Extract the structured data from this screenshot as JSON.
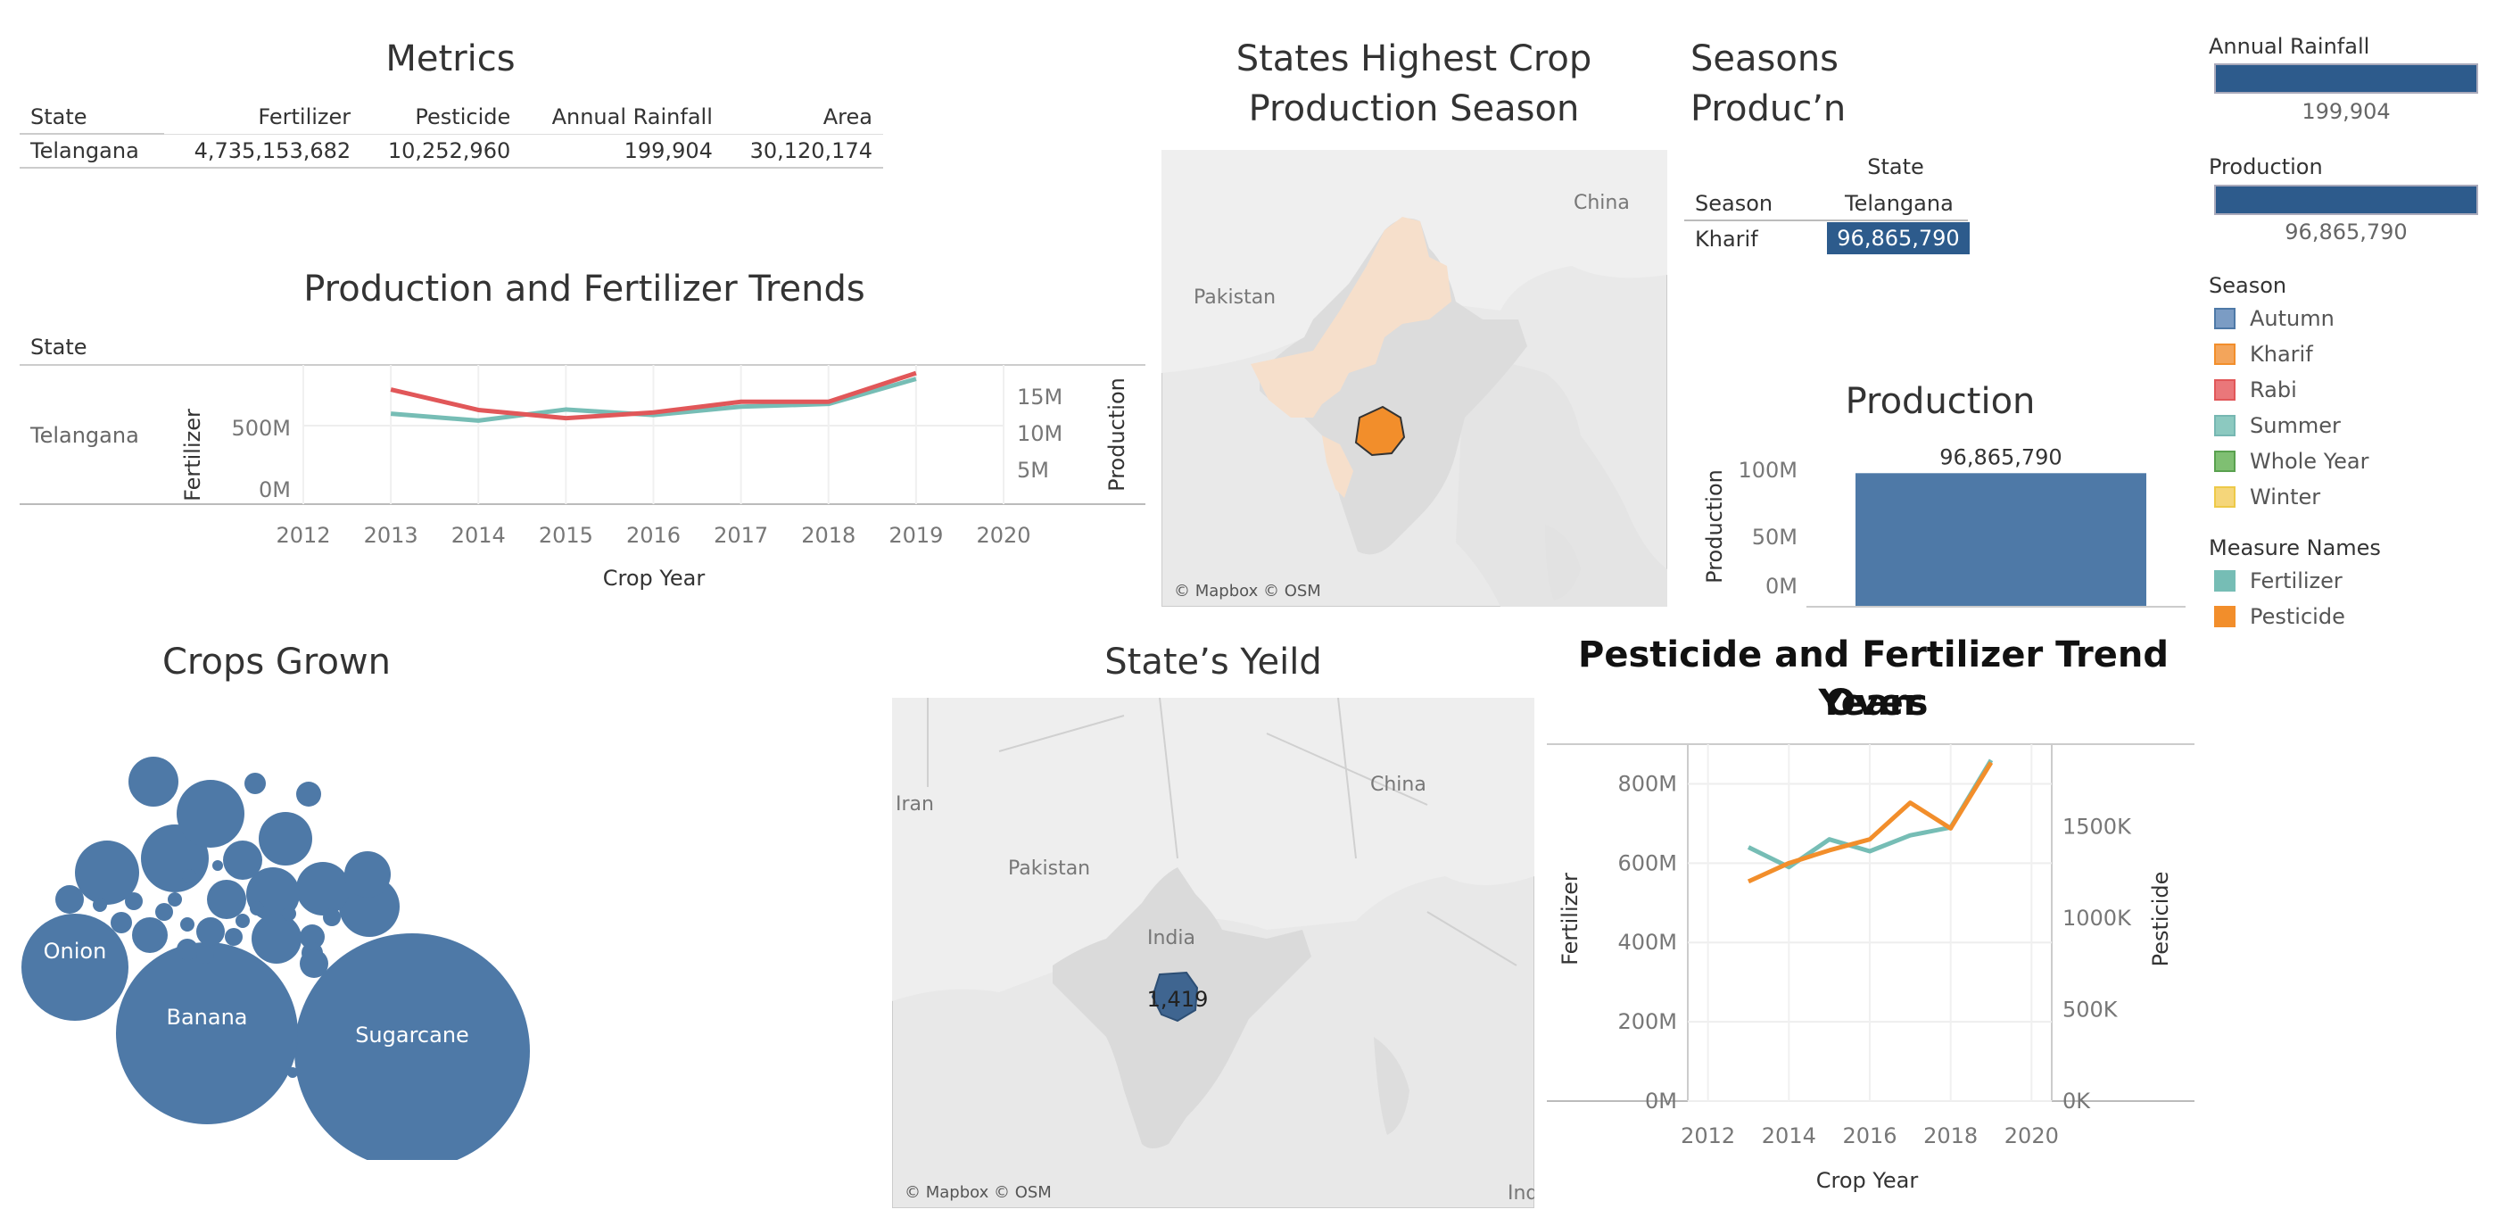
{
  "metrics": {
    "title": "Metrics",
    "headers": [
      "State",
      "Fertilizer",
      "Pesticide",
      "Annual Rainfall",
      "Area"
    ],
    "row": [
      "Telangana",
      "4,735,153,682",
      "10,252,960",
      "199,904",
      "30,120,174"
    ]
  },
  "trends": {
    "title": "Production and Fertilizer Trends",
    "state_header": "State",
    "state": "Telangana",
    "left_axis": "Fertilizer",
    "right_axis": "Production",
    "left_ticks": [
      "500M",
      "0M"
    ],
    "right_ticks": [
      "15M",
      "10M",
      "5M"
    ],
    "x_ticks": [
      "2012",
      "2013",
      "2014",
      "2015",
      "2016",
      "2017",
      "2018",
      "2019",
      "2020"
    ],
    "xlabel": "Crop Year"
  },
  "season_map": {
    "title_line1": "States  Highest Crop",
    "title_line2": "Production Season",
    "labels": {
      "china": "China",
      "pakistan": "Pakistan"
    },
    "credit": "© Mapbox © OSM"
  },
  "seasons": {
    "title_line1": "Seasons",
    "title_line2": "Produc’n",
    "col_group": "State",
    "row_header": "Season",
    "col_header": "Telangana",
    "row_label": "Kharif",
    "value": "96,865,790"
  },
  "kpi": {
    "rainfall_label": "Annual Rainfall",
    "rainfall_value": "199,904",
    "production_label": "Production",
    "production_value": "96,865,790"
  },
  "season_legend": {
    "title": "Season",
    "items": [
      {
        "label": "Autumn",
        "color": "#7b9cc4"
      },
      {
        "label": "Kharif",
        "color": "#f3a55b"
      },
      {
        "label": "Rabi",
        "color": "#ea777a"
      },
      {
        "label": "Summer",
        "color": "#8cc9c0"
      },
      {
        "label": "Whole Year",
        "color": "#7fbf72"
      },
      {
        "label": "Winter",
        "color": "#f5d67a"
      }
    ]
  },
  "measure_legend": {
    "title": "Measure Names",
    "items": [
      {
        "label": "Fertilizer",
        "color": "#76bdb5"
      },
      {
        "label": "Pesticide",
        "color": "#f28e2b"
      }
    ]
  },
  "production_bar": {
    "title": "Production",
    "ylabel": "Production",
    "ticks": [
      "100M",
      "50M",
      "0M"
    ],
    "value_label": "96,865,790"
  },
  "crops": {
    "title": "Crops Grown",
    "labels": {
      "onion": "Onion",
      "banana": "Banana",
      "sugarcane": "Sugarcane"
    }
  },
  "yield_map": {
    "title": "State’s Yeild",
    "value": "1,419",
    "labels": {
      "china": "China",
      "pakistan": "Pakistan",
      "india": "India",
      "iran": "Iran",
      "ind": "Ind"
    },
    "credit": "© Mapbox © OSM"
  },
  "pf_trend": {
    "title_line1": "Pesticide and Fertilizer Trend Over",
    "title_line2": "Years",
    "left_axis": "Fertilizer",
    "right_axis": "Pesticide",
    "left_ticks": [
      "800M",
      "600M",
      "400M",
      "200M",
      "0M"
    ],
    "right_ticks": [
      "1500K",
      "1000K",
      "500K",
      "0K"
    ],
    "x_ticks": [
      "2012",
      "2014",
      "2016",
      "2018",
      "2020"
    ],
    "xlabel": "Crop Year"
  },
  "chart_data": [
    {
      "type": "line",
      "title": "Production and Fertilizer Trends",
      "xlabel": "Crop Year",
      "x": [
        2013,
        2014,
        2015,
        2016,
        2017,
        2018,
        2019
      ],
      "series": [
        {
          "name": "Fertilizer",
          "axis": "left",
          "color": "#76bdb5",
          "values": [
            650000000,
            600000000,
            680000000,
            640000000,
            700000000,
            720000000,
            900000000
          ]
        },
        {
          "name": "Production",
          "axis": "right",
          "color": "#e15759",
          "values": [
            14000000,
            11500000,
            10500000,
            11200000,
            12500000,
            12500000,
            16000000
          ]
        }
      ],
      "xlim": [
        2012,
        2020
      ],
      "ylim_left": [
        0,
        1000000000
      ],
      "ylim_right": [
        0,
        17000000
      ]
    },
    {
      "type": "bar",
      "title": "Production",
      "ylabel": "Production",
      "categories": [
        "Telangana"
      ],
      "values": [
        96865790
      ],
      "ylim": [
        0,
        110000000
      ]
    },
    {
      "type": "line",
      "title": "Pesticide and Fertilizer Trend Over Years",
      "xlabel": "Crop Year",
      "x": [
        2013,
        2014,
        2015,
        2016,
        2017,
        2018,
        2019
      ],
      "series": [
        {
          "name": "Fertilizer",
          "axis": "left",
          "color": "#76bdb5",
          "values": [
            640000000,
            590000000,
            660000000,
            630000000,
            670000000,
            690000000,
            860000000
          ]
        },
        {
          "name": "Pesticide",
          "axis": "right",
          "color": "#f28e2b",
          "values": [
            1200000,
            1300000,
            1370000,
            1430000,
            1630000,
            1490000,
            1850000
          ]
        }
      ],
      "xlim": [
        2011.5,
        2020.5
      ],
      "ylim_left": [
        0,
        900000000
      ],
      "ylim_right": [
        0,
        1950000
      ]
    },
    {
      "type": "bubble",
      "title": "Crops Grown",
      "labels": [
        "Sugarcane",
        "Banana",
        "Onion"
      ]
    }
  ]
}
